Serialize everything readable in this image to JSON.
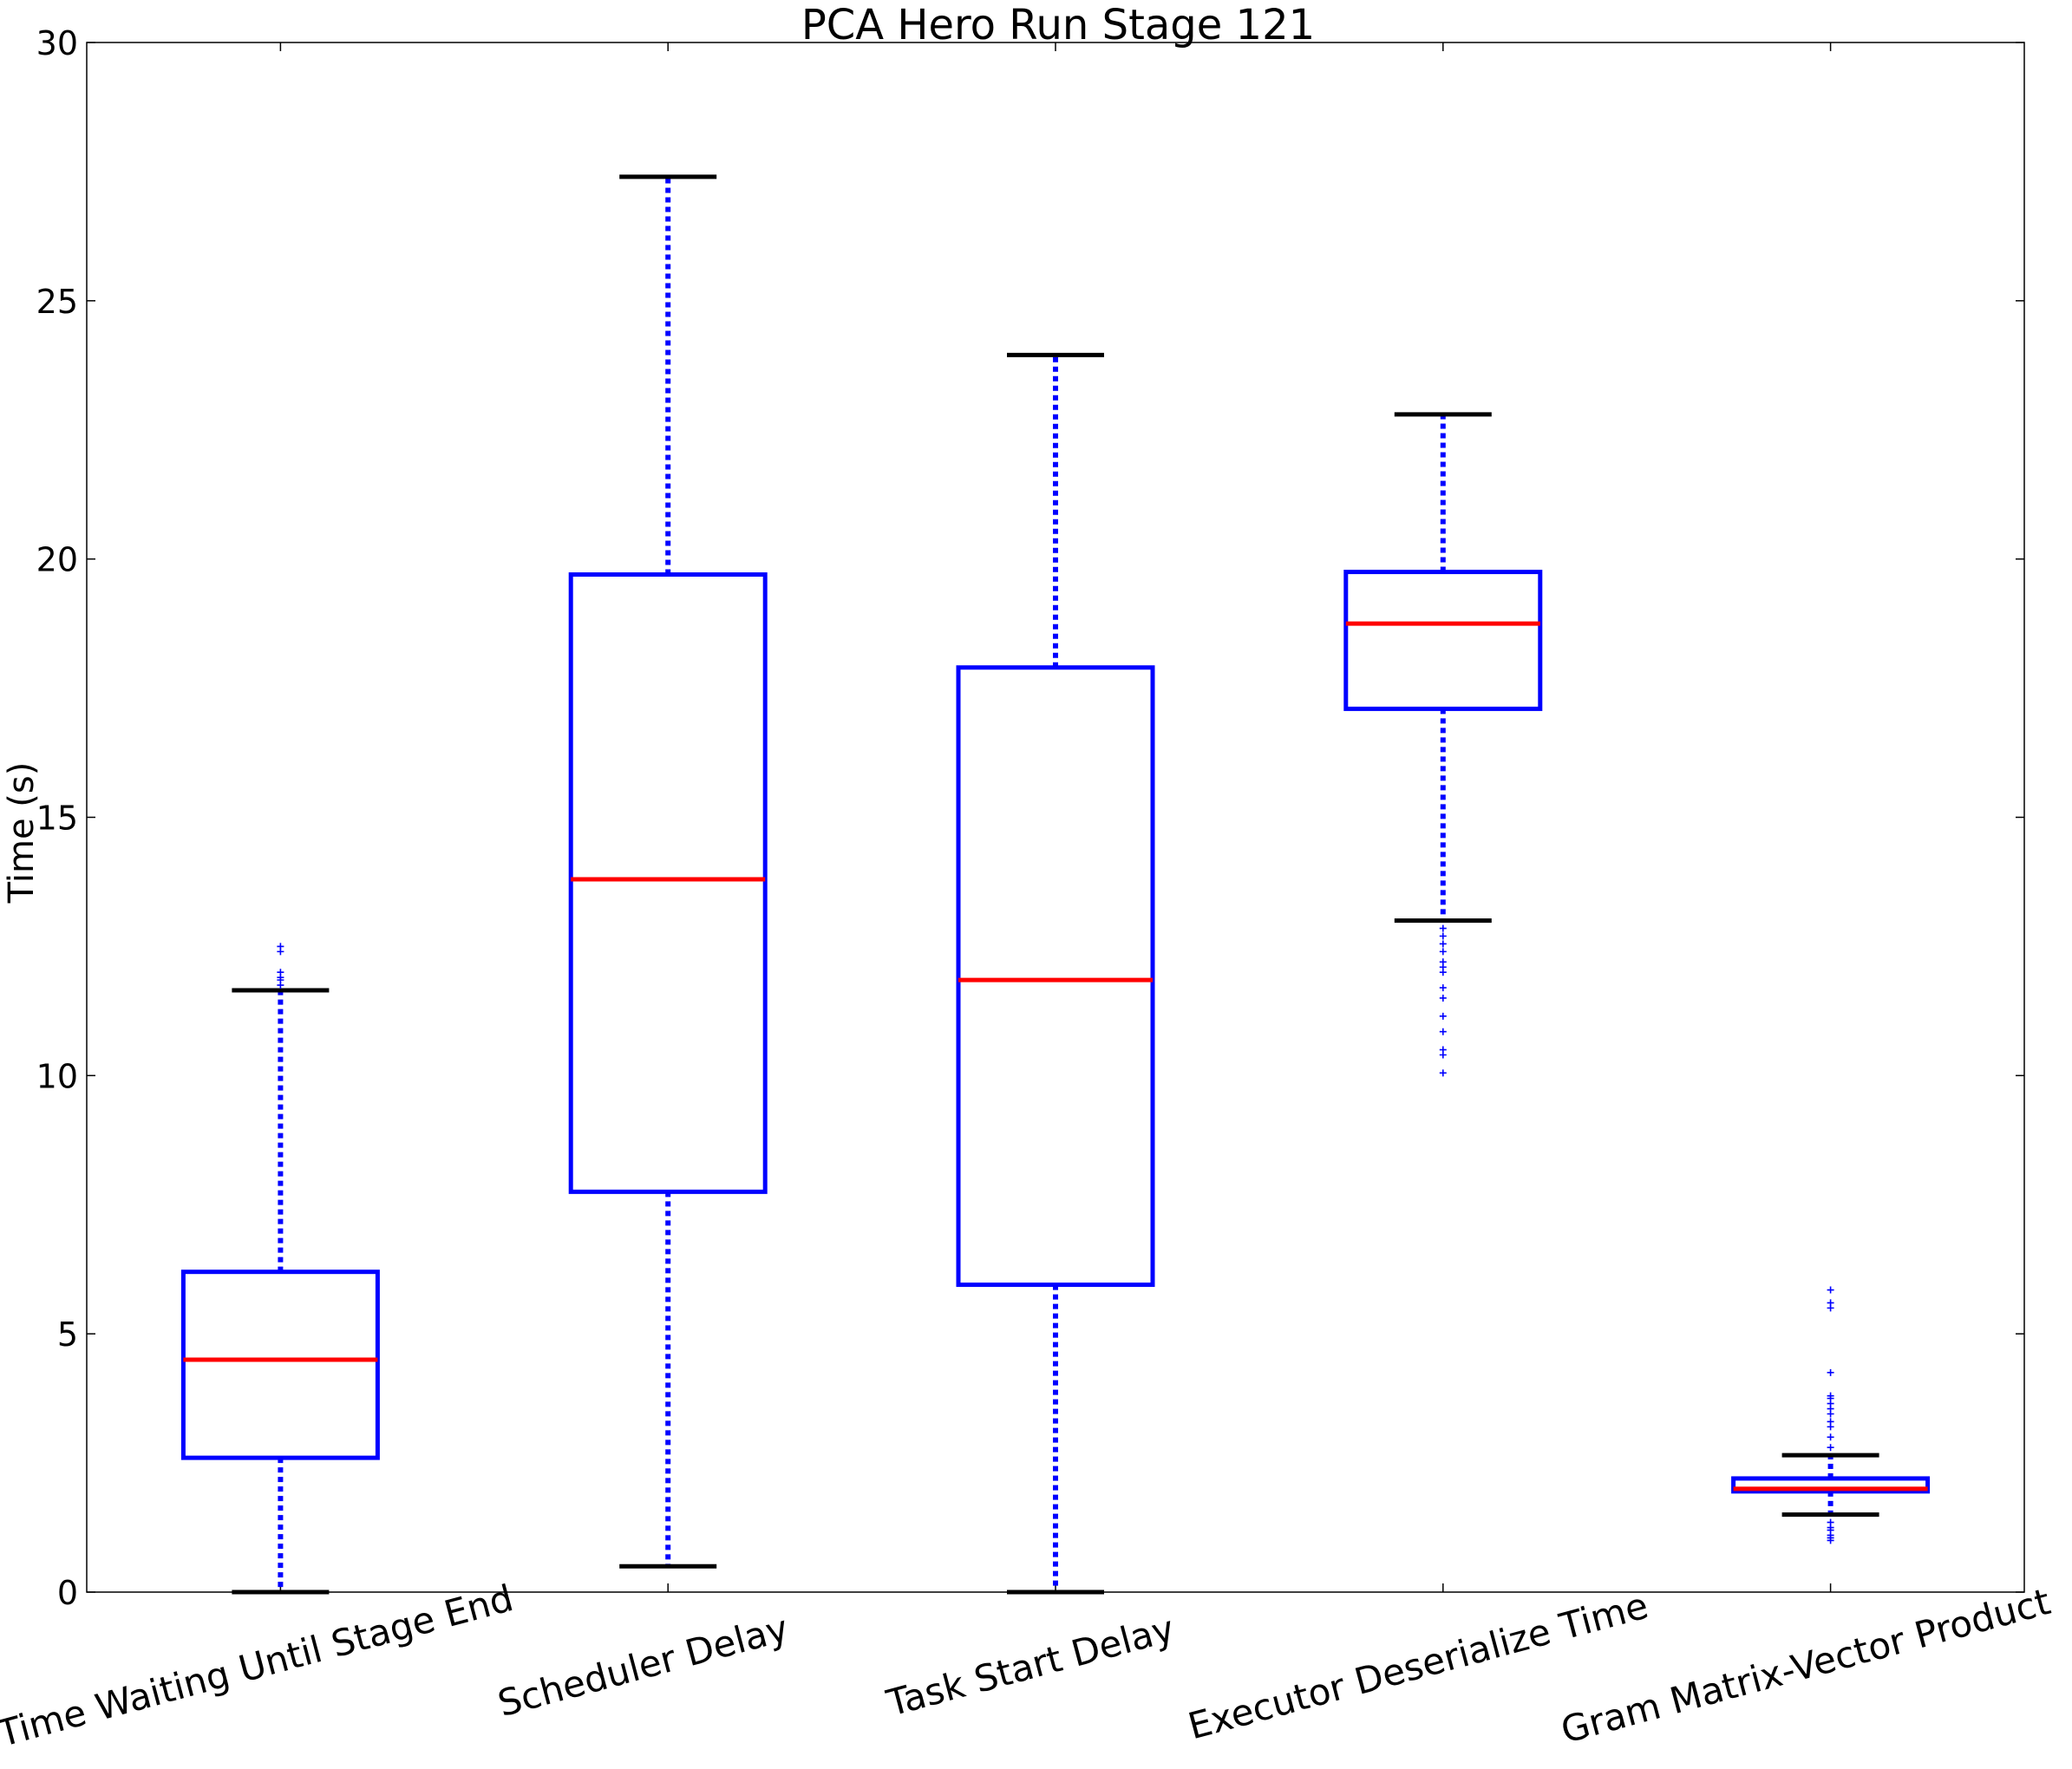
{
  "chart_data": {
    "type": "box",
    "title": "PCA Hero Run Stage 121",
    "xlabel": "",
    "ylabel": "Time (s)",
    "ylim": [
      0,
      30
    ],
    "yticks": [
      0,
      5,
      10,
      15,
      20,
      25,
      30
    ],
    "grid": false,
    "legend": "none",
    "categories": [
      "Time Waiting Until Stage End",
      "Scheduler Delay",
      "Task Start Delay",
      "Executor Deserialize Time",
      "Gram Matrix-Vector Product"
    ],
    "boxes": [
      {
        "whisker_low": 0.0,
        "q1": 2.6,
        "median": 4.5,
        "q3": 6.2,
        "whisker_high": 11.65,
        "outliers": [
          11.75,
          11.85,
          11.9,
          12.0,
          12.4,
          12.5
        ]
      },
      {
        "whisker_low": 0.5,
        "q1": 7.75,
        "median": 13.8,
        "q3": 19.7,
        "whisker_high": 27.4,
        "outliers": []
      },
      {
        "whisker_low": 0.0,
        "q1": 5.95,
        "median": 11.85,
        "q3": 17.9,
        "whisker_high": 23.95,
        "outliers": []
      },
      {
        "whisker_low": 13.0,
        "q1": 17.1,
        "median": 18.75,
        "q3": 19.75,
        "whisker_high": 22.8,
        "outliers": [
          12.85,
          12.7,
          12.55,
          12.4,
          12.2,
          12.1,
          12.0,
          11.7,
          11.5,
          11.15,
          10.85,
          10.5,
          10.4,
          10.05
        ]
      },
      {
        "whisker_low": 1.5,
        "q1": 1.95,
        "median": 2.0,
        "q3": 2.2,
        "whisker_high": 2.65,
        "outliers": [
          2.8,
          3.0,
          3.2,
          3.3,
          3.45,
          3.55,
          3.65,
          3.75,
          3.8,
          4.25,
          5.5,
          5.6,
          5.85,
          1.35,
          1.25,
          1.2,
          1.1,
          1.05,
          1.0
        ]
      }
    ],
    "colors": {
      "box": "#0000ff",
      "median": "#ff0000",
      "whisker": "#0000ff",
      "cap": "#000000",
      "outlier": "#0000ff",
      "axes": "#000000"
    }
  }
}
